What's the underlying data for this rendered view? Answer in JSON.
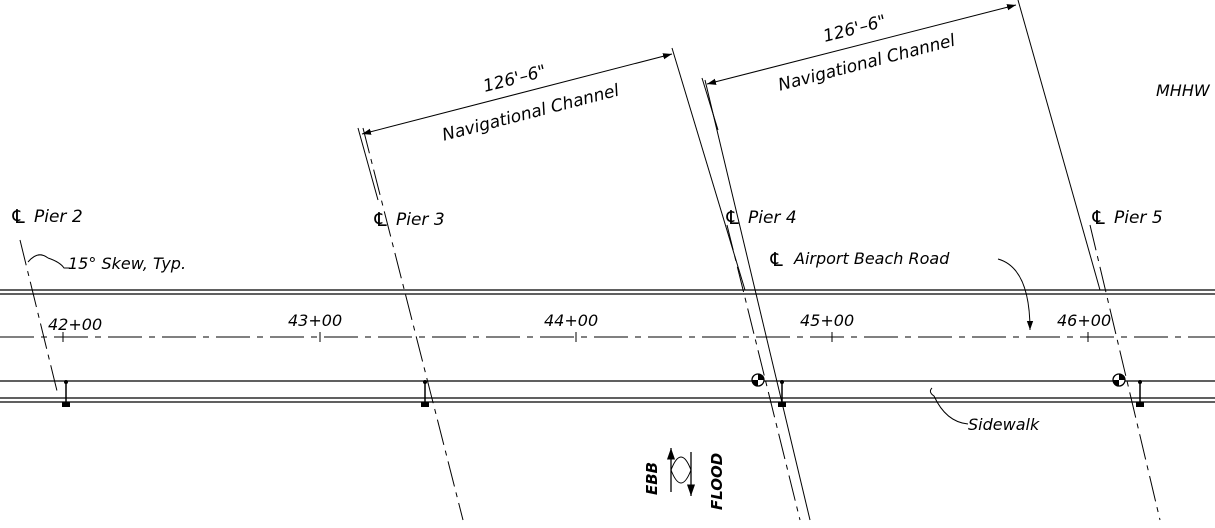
{
  "drawing": {
    "dimensions": [
      {
        "value": "126'–6\"",
        "label": "Navigational Channel"
      },
      {
        "value": "126'–6\"",
        "label": "Navigational Channel"
      }
    ],
    "elevation_note": "MHHW",
    "piers": [
      {
        "symbol": "℄",
        "label": "Pier 2"
      },
      {
        "symbol": "℄",
        "label": "Pier 3"
      },
      {
        "symbol": "℄",
        "label": "Pier 4"
      },
      {
        "symbol": "℄",
        "label": "Pier 5"
      }
    ],
    "skew_note": "15° Skew, Typ.",
    "road": {
      "symbol": "℄",
      "label": "Airport Beach Road"
    },
    "stations": [
      "42+00",
      "43+00",
      "44+00",
      "45+00",
      "46+00"
    ],
    "sidewalk_label": "Sidewalk",
    "flow": {
      "ebb": "EBB",
      "flood": "FLOOD"
    }
  }
}
